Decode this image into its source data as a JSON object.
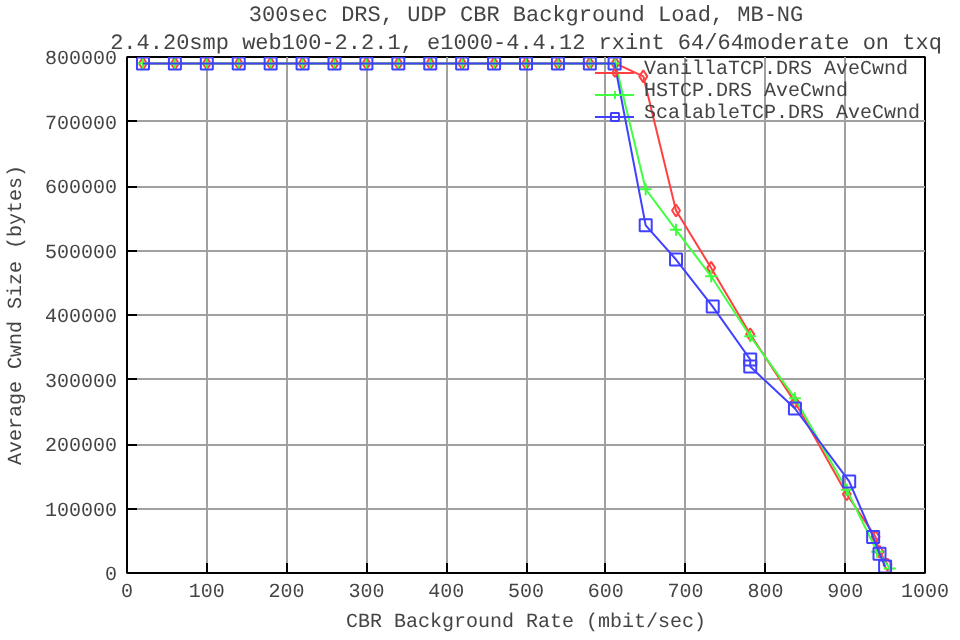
{
  "chart_data": {
    "type": "line",
    "title": "300sec DRS, UDP CBR Background Load, MB-NG",
    "subtitle": "2.4.20smp web100-2.2.1, e1000-4.4.12 rxint 64/64moderate on txq",
    "xlabel": "CBR Background Rate (mbit/sec)",
    "ylabel": "Average Cwnd Size (bytes)",
    "xlim": [
      0,
      1000
    ],
    "ylim": [
      0,
      800000
    ],
    "xticks": [
      0,
      100,
      200,
      300,
      400,
      500,
      600,
      700,
      800,
      900,
      1000
    ],
    "yticks": [
      0,
      100000,
      200000,
      300000,
      400000,
      500000,
      600000,
      700000,
      800000
    ],
    "grid": true,
    "legend": "top right",
    "line_style": "solid",
    "series": [
      {
        "name": "VanillaTCP.DRS AveCwnd",
        "color": "#ff4040",
        "marker": "diamond",
        "x": [
          20,
          60,
          100,
          140,
          180,
          220,
          260,
          300,
          340,
          380,
          420,
          460,
          500,
          540,
          580,
          612,
          647,
          688,
          732,
          781,
          837,
          902,
          938,
          943,
          953
        ],
        "values": [
          790000,
          790000,
          790000,
          790000,
          790000,
          790000,
          790000,
          790000,
          790000,
          790000,
          790000,
          790000,
          790000,
          790000,
          790000,
          790000,
          770000,
          562000,
          473000,
          370000,
          265000,
          122000,
          56000,
          33000,
          13000
        ]
      },
      {
        "name": "HSTCP.DRS AveCwnd",
        "color": "#40ff40",
        "marker": "cross",
        "x": [
          20,
          60,
          100,
          140,
          180,
          220,
          260,
          300,
          340,
          380,
          420,
          460,
          500,
          540,
          580,
          612,
          650,
          688,
          732,
          781,
          837,
          902,
          940,
          956
        ],
        "values": [
          790000,
          790000,
          790000,
          790000,
          790000,
          790000,
          790000,
          790000,
          790000,
          790000,
          790000,
          790000,
          790000,
          790000,
          790000,
          790000,
          595000,
          532000,
          460000,
          367000,
          271000,
          129000,
          33000,
          7000
        ]
      },
      {
        "name": "ScalableTCP.DRS AveCwnd",
        "color": "#4040ff",
        "marker": "square",
        "x": [
          20,
          60,
          100,
          140,
          180,
          220,
          260,
          300,
          340,
          380,
          420,
          460,
          500,
          540,
          580,
          611,
          650,
          688,
          734,
          781,
          781,
          837,
          905,
          935,
          943,
          950
        ],
        "values": [
          790000,
          790000,
          790000,
          790000,
          790000,
          790000,
          790000,
          790000,
          790000,
          790000,
          790000,
          790000,
          790000,
          790000,
          790000,
          790000,
          539000,
          486000,
          413000,
          331000,
          320000,
          255000,
          142000,
          56000,
          30000,
          10000
        ]
      }
    ]
  }
}
